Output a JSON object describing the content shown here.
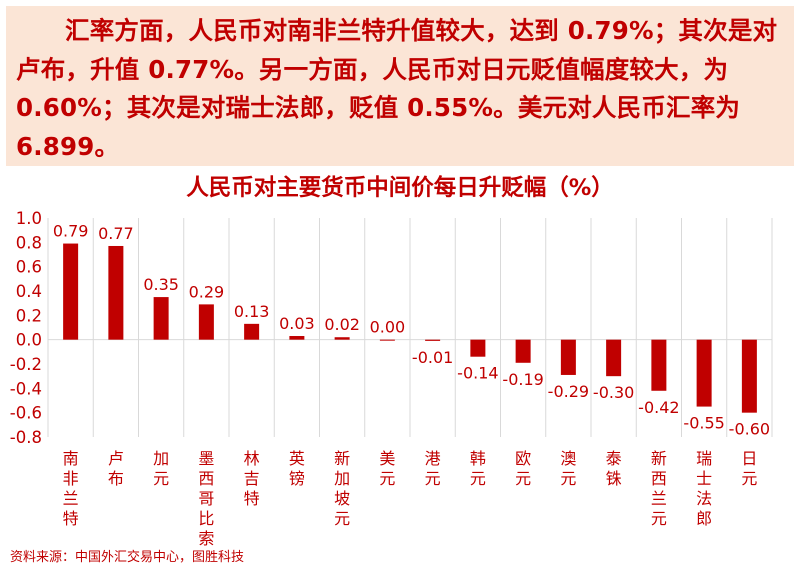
{
  "summary": {
    "text": "汇率方面，人民币对南非兰特升值较大，达到 0.79%；其次是对卢布，升值 0.77%。另一方面，人民币对日元贬值幅度较大，为 0.60%；其次是对瑞士法郎，贬值 0.55%。美元对人民币汇率为 6.899。"
  },
  "source": "资料来源：中国外汇交易中心，图胜科技",
  "colors": {
    "bar": "#c00000",
    "text": "#c00000",
    "box": "#fbe5d6"
  },
  "chart_data": {
    "type": "bar",
    "title": "人民币对主要货币中间价每日升贬幅（%）",
    "xlabel": "",
    "ylabel": "",
    "ylim": [
      -0.8,
      1.0
    ],
    "yticks": [
      1.0,
      0.8,
      0.6,
      0.4,
      0.2,
      0.0,
      -0.2,
      -0.4,
      -0.6,
      -0.8
    ],
    "ytick_labels": [
      "1.0",
      "0.8",
      "0.6",
      "0.4",
      "0.2",
      "0.0",
      "-0.2",
      "-0.4",
      "-0.6",
      "-0.8"
    ],
    "grid": "vertical",
    "categories": [
      "南非兰特",
      "卢布",
      "加元",
      "墨西哥比索",
      "林吉特",
      "英镑",
      "新加坡元",
      "美元",
      "港元",
      "韩元",
      "欧元",
      "澳元",
      "泰铢",
      "新西兰元",
      "瑞士法郎",
      "日元"
    ],
    "values": [
      0.79,
      0.77,
      0.35,
      0.29,
      0.13,
      0.03,
      0.02,
      0.0,
      -0.01,
      -0.14,
      -0.19,
      -0.29,
      -0.3,
      -0.42,
      -0.55,
      -0.6
    ],
    "value_labels": [
      "0.79",
      "0.77",
      "0.35",
      "0.29",
      "0.13",
      "0.03",
      "0.02",
      "0.00",
      "-0.01",
      "-0.14",
      "-0.19",
      "-0.29",
      "-0.30",
      "-0.42",
      "-0.55",
      "-0.60"
    ]
  }
}
